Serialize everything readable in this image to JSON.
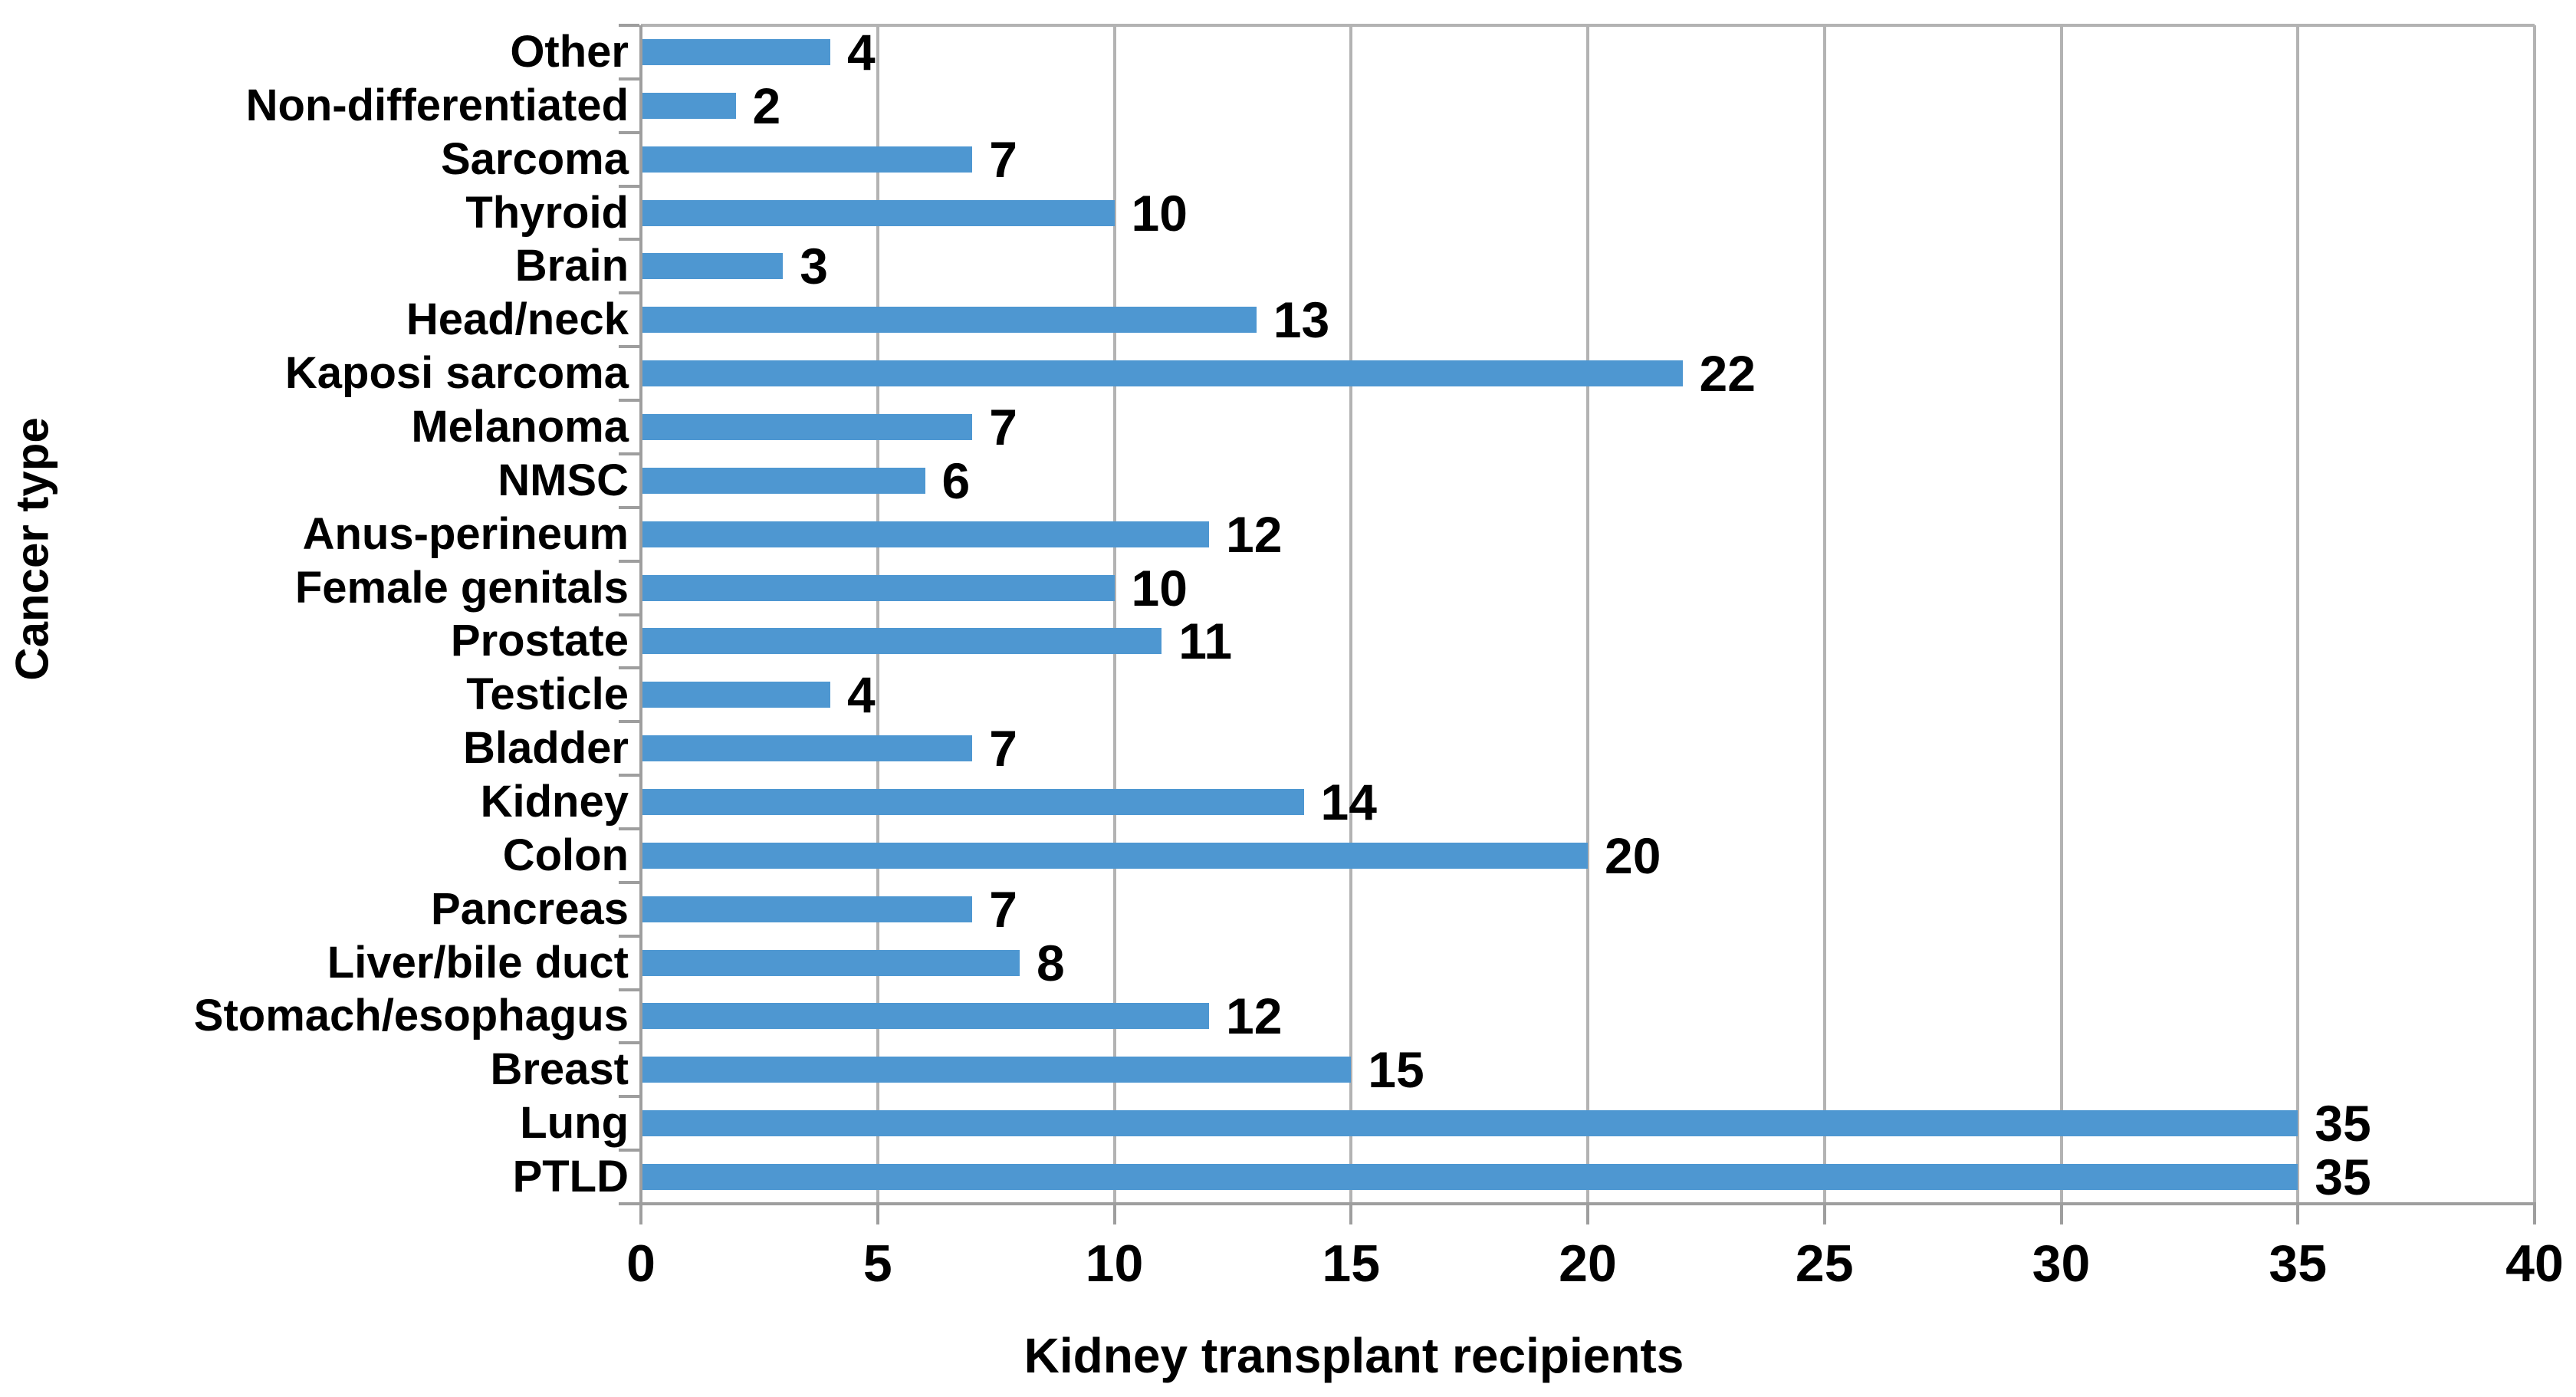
{
  "figure": {
    "background": "#ffffff",
    "bar_color": "#4E97D1",
    "gridline_color": "#b3b3b3",
    "axis_color": "#9e9e9e",
    "text_color": "#000000"
  },
  "chart_data": {
    "type": "bar",
    "orientation": "horizontal",
    "title": "",
    "xlabel": "Kidney transplant recipients",
    "ylabel": "Cancer type",
    "xlim": [
      0,
      40
    ],
    "xticks": [
      0,
      5,
      10,
      15,
      20,
      25,
      30,
      35,
      40
    ],
    "grid": true,
    "legend": "none",
    "data_labels": true,
    "categories": [
      "Other",
      "Non-differentiated",
      "Sarcoma",
      "Thyroid",
      "Brain",
      "Head/neck",
      "Kaposi sarcoma",
      "Melanoma",
      "NMSC",
      "Anus-perineum",
      "Female genitals",
      "Prostate",
      "Testicle",
      "Bladder",
      "Kidney",
      "Colon",
      "Pancreas",
      "Liver/bile duct",
      "Stomach/esophagus",
      "Breast",
      "Lung",
      "PTLD"
    ],
    "values": [
      4,
      2,
      7,
      10,
      3,
      13,
      22,
      7,
      6,
      12,
      10,
      11,
      4,
      7,
      14,
      20,
      7,
      8,
      12,
      15,
      35,
      35
    ]
  }
}
